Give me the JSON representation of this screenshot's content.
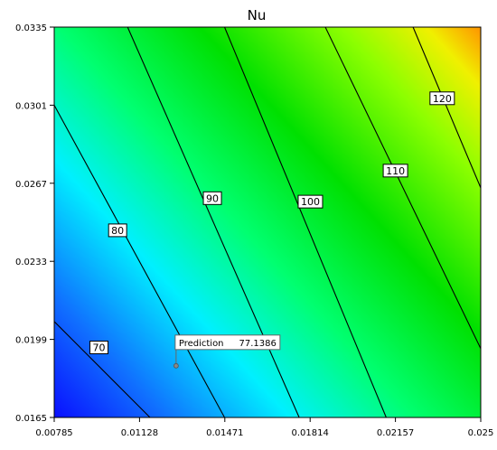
{
  "chart_data": {
    "type": "contour",
    "title": "Nu",
    "xlabel": "",
    "ylabel": "",
    "xlim": [
      0.00785,
      0.025
    ],
    "ylim": [
      0.0165,
      0.0335
    ],
    "x_ticks": [
      "0.00785",
      "0.01128",
      "0.01471",
      "0.01814",
      "0.02157",
      "0.025"
    ],
    "y_ticks": [
      "0.0165",
      "0.0199",
      "0.0233",
      "0.0267",
      "0.0301",
      "0.0335"
    ],
    "contour_levels": [
      {
        "level": 70,
        "label": "70",
        "points": [
          [
            0.00785,
            0.02068
          ],
          [
            0.0117,
            0.0165
          ]
        ],
        "label_at": [
          0.00965,
          0.01955
        ]
      },
      {
        "level": 80,
        "label": "80",
        "points": [
          [
            0.00785,
            0.0301
          ],
          [
            0.0147,
            0.0165
          ]
        ],
        "label_at": [
          0.0104,
          0.02465
        ]
      },
      {
        "level": 90,
        "label": "90",
        "points": [
          [
            0.0108,
            0.0335
          ],
          [
            0.0177,
            0.0165
          ]
        ],
        "label_at": [
          0.01421,
          0.02605
        ]
      },
      {
        "level": 100,
        "label": "100",
        "points": [
          [
            0.0147,
            0.0335
          ],
          [
            0.0212,
            0.0165
          ]
        ],
        "label_at": [
          0.01815,
          0.0259
        ]
      },
      {
        "level": 110,
        "label": "110",
        "points": [
          [
            0.01875,
            0.0335
          ],
          [
            0.025,
            0.0195
          ]
        ],
        "label_at": [
          0.02157,
          0.02725
        ]
      },
      {
        "level": 120,
        "label": "120",
        "points": [
          [
            0.02228,
            0.0335
          ],
          [
            0.025,
            0.0265
          ]
        ],
        "label_at": [
          0.02345,
          0.0304
        ]
      }
    ],
    "prediction": {
      "label": "Prediction",
      "value": "77.1386",
      "x": 0.01275,
      "y": 0.01875
    },
    "colors": {
      "low": "#0a1aff",
      "mid_low": "#00ffff",
      "mid": "#00e000",
      "high": "#ffa000"
    }
  }
}
